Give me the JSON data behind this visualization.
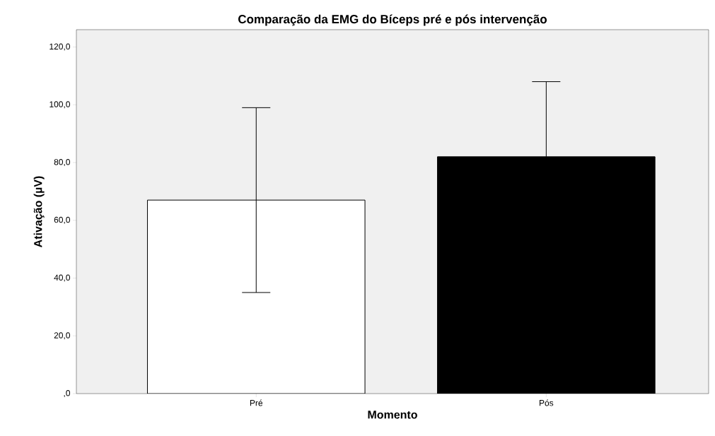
{
  "chart_data": {
    "type": "bar",
    "title": "Comparação da EMG do Bíceps pré e pós intervenção",
    "xlabel": "Momento",
    "ylabel": "Ativação (µV)",
    "categories": [
      "Pré",
      "Pós"
    ],
    "values": [
      67,
      82
    ],
    "colors": [
      "#ffffff",
      "#000000"
    ],
    "errors": [
      32,
      26
    ],
    "ylim": [
      0,
      126
    ],
    "yticks": [
      {
        "value": 0,
        "label": ",0"
      },
      {
        "value": 20,
        "label": "20,0"
      },
      {
        "value": 40,
        "label": "40,0"
      },
      {
        "value": 60,
        "label": "60,0"
      },
      {
        "value": 80,
        "label": "80,0"
      },
      {
        "value": 100,
        "label": "100,0"
      },
      {
        "value": 120,
        "label": "120,0"
      }
    ]
  }
}
